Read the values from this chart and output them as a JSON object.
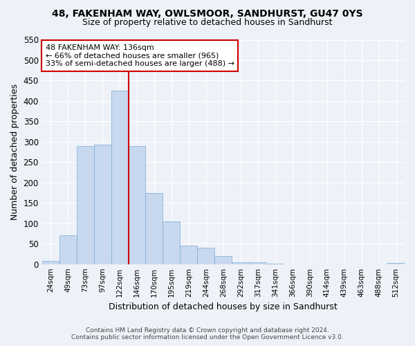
{
  "title": "48, FAKENHAM WAY, OWLSMOOR, SANDHURST, GU47 0YS",
  "subtitle": "Size of property relative to detached houses in Sandhurst",
  "xlabel": "Distribution of detached houses by size in Sandhurst",
  "ylabel": "Number of detached properties",
  "bar_labels": [
    "24sqm",
    "49sqm",
    "73sqm",
    "97sqm",
    "122sqm",
    "146sqm",
    "170sqm",
    "195sqm",
    "219sqm",
    "244sqm",
    "268sqm",
    "292sqm",
    "317sqm",
    "341sqm",
    "366sqm",
    "390sqm",
    "414sqm",
    "439sqm",
    "463sqm",
    "488sqm",
    "512sqm"
  ],
  "bar_heights": [
    8,
    70,
    290,
    293,
    425,
    290,
    175,
    105,
    45,
    40,
    20,
    5,
    5,
    2,
    0,
    0,
    0,
    0,
    0,
    0,
    3
  ],
  "bar_color": "#c8d8ee",
  "bar_edge_color": "#7aadd4",
  "vline_color": "#cc0000",
  "annotation_title": "48 FAKENHAM WAY: 136sqm",
  "annotation_line1": "← 66% of detached houses are smaller (965)",
  "annotation_line2": "33% of semi-detached houses are larger (488) →",
  "annotation_box_color": "#cc0000",
  "ylim": [
    0,
    550
  ],
  "yticks": [
    0,
    50,
    100,
    150,
    200,
    250,
    300,
    350,
    400,
    450,
    500,
    550
  ],
  "footer_line1": "Contains HM Land Registry data © Crown copyright and database right 2024.",
  "footer_line2": "Contains public sector information licensed under the Open Government Licence v3.0.",
  "bg_color": "#eef2f8",
  "plot_bg_color": "#eef2f8",
  "grid_color": "#ffffff",
  "vline_index": 4.5
}
